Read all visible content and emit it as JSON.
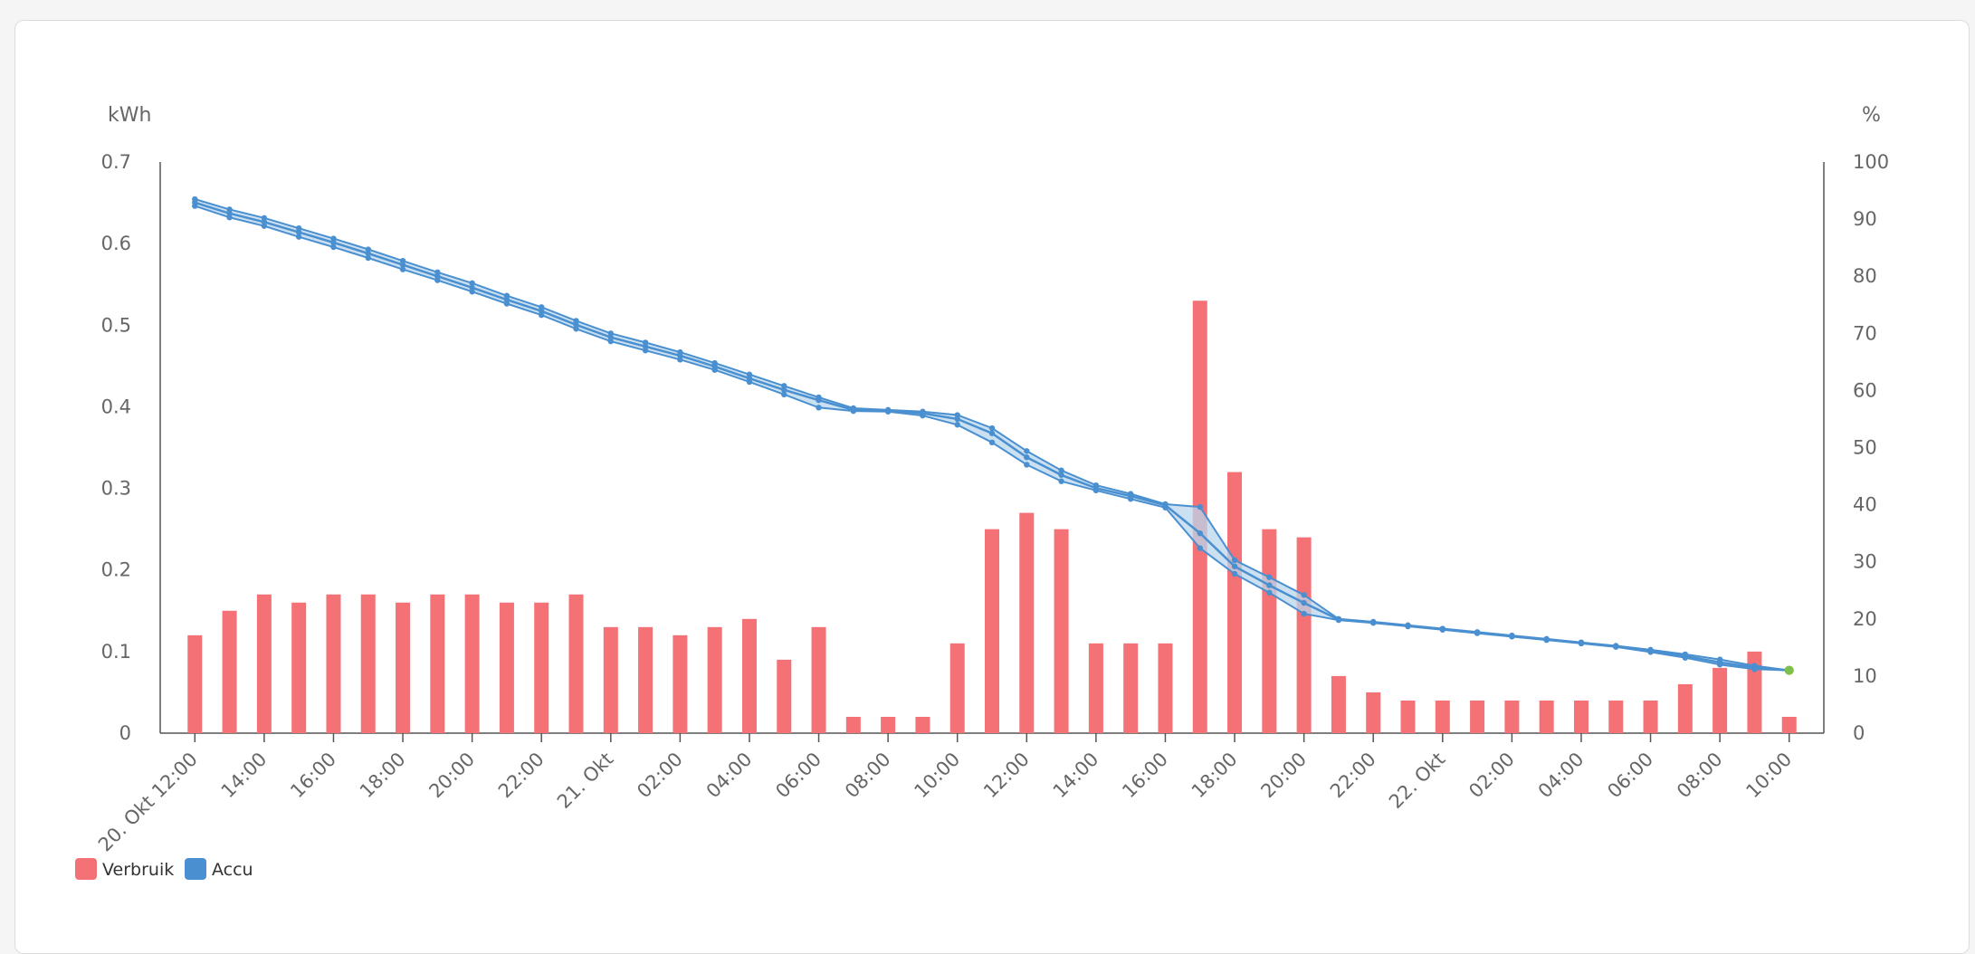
{
  "chart_data": {
    "type": "bar+line",
    "left_unit": "kWh",
    "right_unit": "%",
    "left_axis": {
      "min": 0,
      "max": 0.7,
      "ticks": [
        0,
        0.1,
        0.2,
        0.3,
        0.4,
        0.5,
        0.6,
        0.7
      ]
    },
    "right_axis": {
      "min": 0,
      "max": 100,
      "ticks": [
        0,
        10,
        20,
        30,
        40,
        50,
        60,
        70,
        80,
        90,
        100
      ]
    },
    "x_tick_labels": [
      "20. Okt 12:00",
      "14:00",
      "16:00",
      "18:00",
      "20:00",
      "22:00",
      "21. Okt",
      "02:00",
      "04:00",
      "06:00",
      "08:00",
      "10:00",
      "12:00",
      "14:00",
      "16:00",
      "18:00",
      "20:00",
      "22:00",
      "22. Okt",
      "02:00",
      "04:00",
      "06:00",
      "08:00",
      "10:00"
    ],
    "x_tick_hour_offsets": [
      0,
      2,
      4,
      6,
      8,
      10,
      12,
      14,
      16,
      18,
      20,
      22,
      24,
      26,
      28,
      30,
      32,
      34,
      36,
      38,
      40,
      42,
      44,
      46
    ],
    "x_hour_range": [
      -1,
      47
    ],
    "hour_offsets": [
      0,
      1,
      2,
      3,
      4,
      5,
      6,
      7,
      8,
      9,
      10,
      11,
      12,
      13,
      14,
      15,
      16,
      17,
      18,
      19,
      20,
      21,
      22,
      23,
      24,
      25,
      26,
      27,
      28,
      29,
      30,
      31,
      32,
      33,
      34,
      35,
      36,
      37,
      38,
      39,
      40,
      41,
      42,
      43,
      44,
      45,
      46
    ],
    "series": [
      {
        "name": "Verbruik",
        "type": "bar",
        "axis": "left",
        "color": "#f47176",
        "values": [
          0.12,
          0.15,
          0.17,
          0.16,
          0.17,
          0.17,
          0.16,
          0.17,
          0.17,
          0.16,
          0.16,
          0.17,
          0.13,
          0.13,
          0.12,
          0.13,
          0.14,
          0.09,
          0.13,
          0.02,
          0.02,
          0.02,
          0.11,
          0.25,
          0.27,
          0.25,
          0.11,
          0.11,
          0.11,
          0.53,
          0.32,
          0.25,
          0.24,
          0.07,
          0.05,
          0.04,
          0.04,
          0.04,
          0.04,
          0.04,
          0.04,
          0.04,
          0.04,
          0.06,
          0.08,
          0.1,
          0.02
        ]
      },
      {
        "name": "Accu",
        "type": "arearange",
        "axis": "right",
        "color": "#4a90d0",
        "fill": "#b9d7ee",
        "high": [
          93.5,
          91.7,
          90.2,
          88.4,
          86.6,
          84.7,
          82.7,
          80.7,
          78.8,
          76.6,
          74.6,
          72.2,
          70.0,
          68.4,
          66.7,
          64.8,
          62.8,
          60.8,
          58.8,
          56.9,
          56.6,
          56.3,
          55.7,
          53.4,
          49.4,
          46.0,
          43.4,
          41.9,
          40.1,
          39.6,
          30.3,
          27.3,
          24.2,
          20.0,
          19.5,
          18.9,
          18.3,
          17.7,
          17.1,
          16.5,
          15.9,
          15.3,
          14.6,
          13.8,
          12.9,
          11.8,
          11.0
        ],
        "mid": [
          92.9,
          91.0,
          89.5,
          87.7,
          85.9,
          84.0,
          82.0,
          80.0,
          78.0,
          75.9,
          73.9,
          71.5,
          69.3,
          67.7,
          66.1,
          64.2,
          62.1,
          60.1,
          58.3,
          56.6,
          56.5,
          56.0,
          55.0,
          52.5,
          48.3,
          45.2,
          42.9,
          41.5,
          39.9,
          35.0,
          29.2,
          25.9,
          22.8,
          19.9,
          19.4,
          18.8,
          18.2,
          17.6,
          17.0,
          16.4,
          15.8,
          15.2,
          14.4,
          13.5,
          12.4,
          11.5,
          11.0
        ],
        "low": [
          92.3,
          90.3,
          88.8,
          86.9,
          85.1,
          83.2,
          81.2,
          79.3,
          77.3,
          75.2,
          73.2,
          70.8,
          68.6,
          67.0,
          65.4,
          63.6,
          61.5,
          59.3,
          57.0,
          56.4,
          56.3,
          55.6,
          54.0,
          50.9,
          47.0,
          44.1,
          42.5,
          41.0,
          39.5,
          32.4,
          27.9,
          24.6,
          20.9,
          19.8,
          19.3,
          18.7,
          18.1,
          17.5,
          16.9,
          16.3,
          15.7,
          15.1,
          14.2,
          13.2,
          12.0,
          11.2,
          11.0
        ]
      }
    ],
    "legend": [
      {
        "label": "Verbruik",
        "color": "#f47176"
      },
      {
        "label": "Accu",
        "color": "#4a90d0"
      }
    ],
    "last_point_color": "#7cc04b",
    "grid": false,
    "legend_position": "bottom-left"
  }
}
